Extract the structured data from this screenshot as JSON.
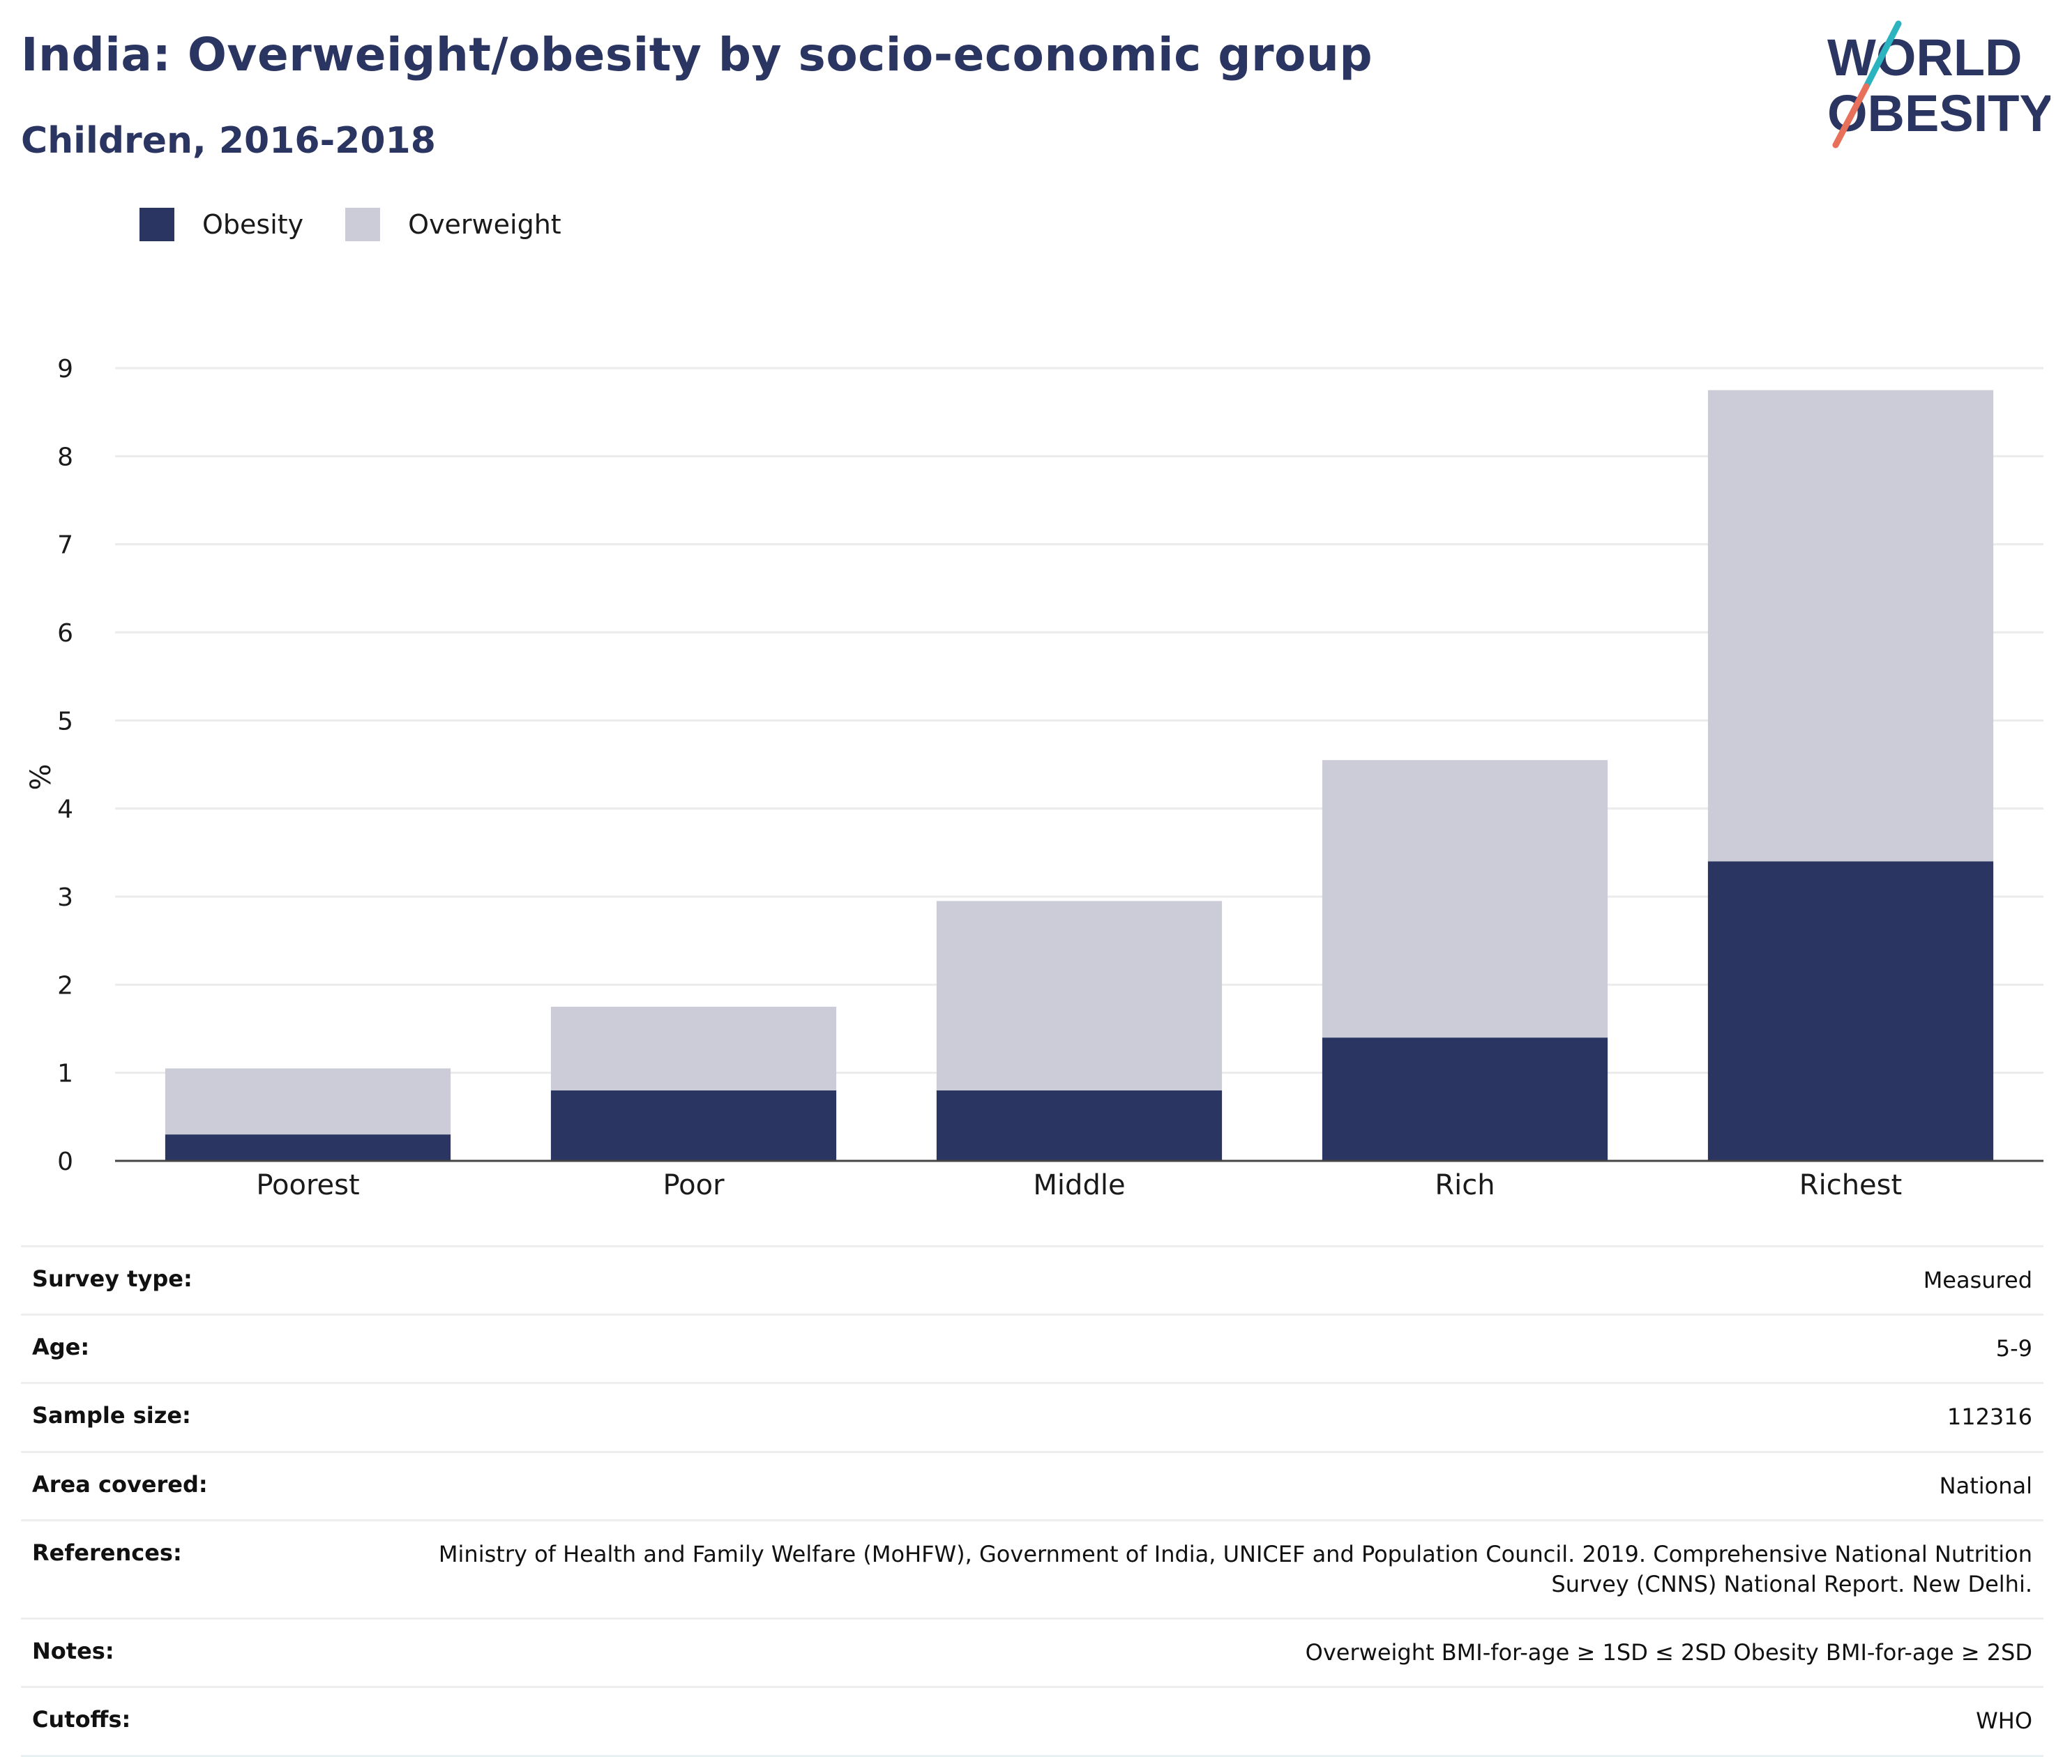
{
  "header": {
    "title": "India: Overweight/obesity by socio-economic group",
    "subtitle": "Children, 2016-2018"
  },
  "logo": {
    "line1": "WORLD",
    "line2": "OBESITY",
    "accent_teal": "#2bb3c0",
    "accent_coral": "#e8715c"
  },
  "legend": [
    {
      "label": "Obesity",
      "color": "#2b3561"
    },
    {
      "label": "Overweight",
      "color": "#cbccd8"
    }
  ],
  "chart_data": {
    "type": "bar",
    "stacked": true,
    "title": "India: Overweight/obesity by socio-economic group",
    "subtitle": "Children, 2016-2018",
    "xlabel": "",
    "ylabel": "%",
    "ylim": [
      0,
      9
    ],
    "yticks": [
      0,
      1,
      2,
      3,
      4,
      5,
      6,
      7,
      8,
      9
    ],
    "grid": true,
    "legend_position": "top-left",
    "categories": [
      "Poorest",
      "Poor",
      "Middle",
      "Rich",
      "Richest"
    ],
    "series": [
      {
        "name": "Obesity",
        "color": "#2b3561",
        "values": [
          0.3,
          0.8,
          0.8,
          1.4,
          3.4
        ]
      },
      {
        "name": "Overweight",
        "color": "#cbccd8",
        "values": [
          0.75,
          0.95,
          2.15,
          3.15,
          5.35
        ]
      }
    ]
  },
  "info": [
    {
      "label": "Survey type:",
      "value": "Measured"
    },
    {
      "label": "Age:",
      "value": "5-9"
    },
    {
      "label": "Sample size:",
      "value": "112316"
    },
    {
      "label": "Area covered:",
      "value": "National"
    },
    {
      "label": "References:",
      "value": "Ministry of Health and Family Welfare (MoHFW), Government of India, UNICEF and Population Council. 2019. Comprehensive National Nutrition Survey (CNNS) National Report. New Delhi."
    },
    {
      "label": "Notes:",
      "value": "Overweight BMI-for-age ≥ 1SD ≤ 2SD Obesity BMI-for-age ≥ 2SD"
    },
    {
      "label": "Cutoffs:",
      "value": "WHO"
    }
  ]
}
